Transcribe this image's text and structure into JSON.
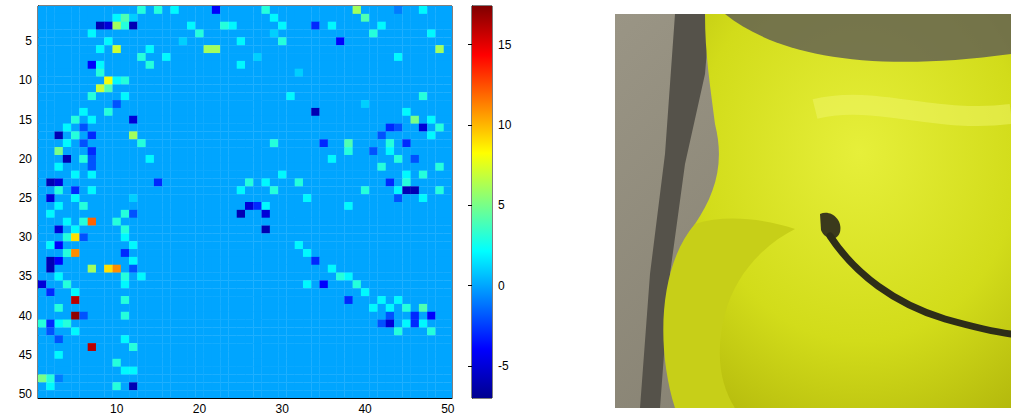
{
  "chart_data": {
    "type": "heatmap",
    "color": "jet",
    "grid": false,
    "xlim": [
      0.5,
      50.5
    ],
    "ylim": [
      50.5,
      0.5
    ],
    "xticks": [
      10,
      20,
      30,
      40,
      50
    ],
    "yticks": [
      5,
      10,
      15,
      20,
      25,
      30,
      35,
      40,
      45,
      50
    ],
    "colorbar": {
      "range": [
        -7,
        17.4
      ],
      "ticks": [
        -5,
        0,
        5,
        10,
        15
      ]
    },
    "background_value": 0,
    "cells": [
      [
        11,
        2,
        4
      ],
      [
        13,
        1,
        3
      ],
      [
        15,
        1,
        3
      ],
      [
        17,
        1,
        2
      ],
      [
        22,
        1,
        -4
      ],
      [
        28,
        1,
        3
      ],
      [
        39,
        1,
        6
      ],
      [
        40,
        2,
        4
      ],
      [
        44,
        1,
        -1
      ],
      [
        47,
        1,
        2
      ],
      [
        10,
        2,
        2
      ],
      [
        12,
        2,
        1
      ],
      [
        24,
        3,
        2
      ],
      [
        29,
        2,
        2
      ],
      [
        8,
        3,
        -6
      ],
      [
        9,
        3,
        -5
      ],
      [
        10,
        3,
        6
      ],
      [
        11,
        3,
        3
      ],
      [
        12,
        3,
        -6
      ],
      [
        19,
        3,
        2
      ],
      [
        23,
        3,
        3
      ],
      [
        30,
        3,
        2
      ],
      [
        34,
        3,
        -3
      ],
      [
        36,
        3,
        2
      ],
      [
        42,
        3,
        2
      ],
      [
        7,
        4,
        2
      ],
      [
        20,
        4,
        3
      ],
      [
        29,
        4,
        1
      ],
      [
        48,
        4,
        2
      ],
      [
        41,
        4,
        3
      ],
      [
        9,
        5,
        2
      ],
      [
        25,
        5,
        2
      ],
      [
        30,
        5,
        3
      ],
      [
        37,
        5,
        -4
      ],
      [
        18,
        5,
        1
      ],
      [
        10,
        6,
        7
      ],
      [
        21,
        6,
        6
      ],
      [
        22,
        6,
        6
      ],
      [
        49,
        6,
        6
      ],
      [
        8,
        6,
        2
      ],
      [
        14,
        6,
        2
      ],
      [
        13,
        7,
        3
      ],
      [
        16,
        7,
        2
      ],
      [
        27,
        7,
        1
      ],
      [
        44,
        7,
        2
      ],
      [
        7,
        8,
        -4
      ],
      [
        8,
        8,
        2
      ],
      [
        14,
        8,
        3
      ],
      [
        25,
        8,
        2
      ],
      [
        8,
        9,
        3
      ],
      [
        32,
        9,
        1
      ],
      [
        9,
        10,
        8
      ],
      [
        10,
        10,
        2
      ],
      [
        11,
        10,
        3
      ],
      [
        8,
        11,
        7
      ],
      [
        9,
        11,
        4
      ],
      [
        7,
        12,
        3
      ],
      [
        11,
        12,
        2
      ],
      [
        31,
        12,
        2
      ],
      [
        47,
        12,
        3
      ],
      [
        10,
        13,
        -2
      ],
      [
        40,
        13,
        1
      ],
      [
        6,
        14,
        2
      ],
      [
        9,
        14,
        3
      ],
      [
        34,
        14,
        -6
      ],
      [
        45,
        14,
        2
      ],
      [
        5,
        15,
        3
      ],
      [
        12,
        15,
        -5
      ],
      [
        7,
        15,
        2
      ],
      [
        48,
        15,
        2
      ],
      [
        46,
        15,
        5
      ],
      [
        4,
        16,
        2
      ],
      [
        6,
        16,
        -2
      ],
      [
        43,
        16,
        -3
      ],
      [
        44,
        16,
        -2
      ],
      [
        47,
        16,
        -5
      ],
      [
        49,
        16,
        3
      ],
      [
        3,
        17,
        -6
      ],
      [
        5,
        17,
        3
      ],
      [
        7,
        17,
        -3
      ],
      [
        12,
        17,
        6
      ],
      [
        42,
        17,
        -2
      ],
      [
        48,
        17,
        2
      ],
      [
        4,
        18,
        2
      ],
      [
        6,
        18,
        -2
      ],
      [
        13,
        18,
        3
      ],
      [
        29,
        18,
        3
      ],
      [
        35,
        18,
        -3
      ],
      [
        38,
        18,
        4
      ],
      [
        43,
        18,
        3
      ],
      [
        45,
        18,
        -3
      ],
      [
        3,
        19,
        5
      ],
      [
        7,
        19,
        -3
      ],
      [
        38,
        19,
        3
      ],
      [
        41,
        19,
        -2
      ],
      [
        43,
        19,
        2
      ],
      [
        4,
        20,
        -6
      ],
      [
        6,
        20,
        3
      ],
      [
        7,
        20,
        -2
      ],
      [
        14,
        20,
        2
      ],
      [
        44,
        20,
        3
      ],
      [
        46,
        20,
        -2
      ],
      [
        36,
        20,
        2
      ],
      [
        3,
        21,
        2
      ],
      [
        7,
        21,
        -2
      ],
      [
        42,
        21,
        3
      ],
      [
        49,
        21,
        3
      ],
      [
        5,
        22,
        2
      ],
      [
        7,
        22,
        2
      ],
      [
        30,
        22,
        2
      ],
      [
        45,
        22,
        2
      ],
      [
        47,
        22,
        3
      ],
      [
        2,
        23,
        -6
      ],
      [
        3,
        23,
        -5
      ],
      [
        15,
        23,
        -3
      ],
      [
        26,
        23,
        3
      ],
      [
        28,
        23,
        2
      ],
      [
        32,
        23,
        3
      ],
      [
        43,
        23,
        -3
      ],
      [
        45,
        23,
        3
      ],
      [
        3,
        24,
        3
      ],
      [
        5,
        24,
        -3
      ],
      [
        7,
        24,
        2
      ],
      [
        25,
        24,
        2
      ],
      [
        29,
        24,
        3
      ],
      [
        40,
        24,
        3
      ],
      [
        44,
        24,
        2
      ],
      [
        45,
        24,
        -6
      ],
      [
        46,
        24,
        -6
      ],
      [
        49,
        24,
        3
      ],
      [
        2,
        25,
        -5
      ],
      [
        5,
        25,
        2
      ],
      [
        44,
        25,
        -2
      ],
      [
        47,
        25,
        2
      ],
      [
        12,
        25,
        1
      ],
      [
        33,
        25,
        2
      ],
      [
        3,
        26,
        2
      ],
      [
        6,
        26,
        3
      ],
      [
        26,
        26,
        -5
      ],
      [
        27,
        26,
        -3
      ],
      [
        28,
        26,
        2
      ],
      [
        38,
        26,
        2
      ],
      [
        2,
        27,
        2
      ],
      [
        11,
        27,
        3
      ],
      [
        12,
        27,
        -2
      ],
      [
        25,
        27,
        -6
      ],
      [
        28,
        27,
        -5
      ],
      [
        4,
        28,
        2
      ],
      [
        7,
        28,
        12
      ],
      [
        10,
        28,
        3
      ],
      [
        6,
        28,
        3
      ],
      [
        3,
        29,
        -5
      ],
      [
        5,
        29,
        2
      ],
      [
        11,
        29,
        3
      ],
      [
        28,
        29,
        -6
      ],
      [
        4,
        30,
        3
      ],
      [
        5,
        30,
        9
      ],
      [
        6,
        30,
        -2
      ],
      [
        11,
        30,
        2
      ],
      [
        2,
        31,
        2
      ],
      [
        3,
        31,
        -4
      ],
      [
        12,
        31,
        2
      ],
      [
        32,
        31,
        2
      ],
      [
        5,
        32,
        11
      ],
      [
        4,
        32,
        3
      ],
      [
        11,
        32,
        -3
      ],
      [
        33,
        32,
        2
      ],
      [
        2,
        33,
        -6
      ],
      [
        3,
        33,
        -4
      ],
      [
        12,
        33,
        2
      ],
      [
        34,
        33,
        -3
      ],
      [
        2,
        34,
        -6
      ],
      [
        7,
        34,
        6
      ],
      [
        9,
        34,
        9
      ],
      [
        10,
        34,
        11
      ],
      [
        12,
        34,
        -2
      ],
      [
        36,
        34,
        2
      ],
      [
        3,
        35,
        2
      ],
      [
        11,
        35,
        3
      ],
      [
        13,
        35,
        2
      ],
      [
        37,
        35,
        3
      ],
      [
        38,
        35,
        2
      ],
      [
        1,
        36,
        -5
      ],
      [
        4,
        36,
        3
      ],
      [
        11,
        36,
        2
      ],
      [
        35,
        36,
        -4
      ],
      [
        39,
        36,
        3
      ],
      [
        33,
        36,
        2
      ],
      [
        2,
        37,
        -3
      ],
      [
        5,
        37,
        2
      ],
      [
        40,
        37,
        2
      ],
      [
        5,
        38,
        16
      ],
      [
        11,
        38,
        3
      ],
      [
        42,
        38,
        2
      ],
      [
        44,
        38,
        2
      ],
      [
        38,
        38,
        -3
      ],
      [
        3,
        39,
        3
      ],
      [
        45,
        39,
        3
      ],
      [
        47,
        39,
        4
      ],
      [
        43,
        39,
        2
      ],
      [
        41,
        39,
        2
      ],
      [
        5,
        40,
        17
      ],
      [
        6,
        40,
        -2
      ],
      [
        11,
        40,
        3
      ],
      [
        43,
        40,
        -2
      ],
      [
        46,
        40,
        -3
      ],
      [
        48,
        40,
        -4
      ],
      [
        1,
        41,
        3
      ],
      [
        2,
        41,
        -3
      ],
      [
        3,
        41,
        2
      ],
      [
        4,
        41,
        3
      ],
      [
        42,
        41,
        -2
      ],
      [
        43,
        41,
        -5
      ],
      [
        45,
        41,
        2
      ],
      [
        46,
        41,
        -3
      ],
      [
        47,
        41,
        2
      ],
      [
        2,
        42,
        -2
      ],
      [
        5,
        42,
        2
      ],
      [
        44,
        42,
        3
      ],
      [
        48,
        42,
        3
      ],
      [
        3,
        43,
        -2
      ],
      [
        11,
        43,
        2
      ],
      [
        7,
        44,
        16
      ],
      [
        12,
        44,
        3
      ],
      [
        3,
        45,
        2
      ],
      [
        10,
        46,
        3
      ],
      [
        11,
        47,
        2
      ],
      [
        12,
        47,
        2
      ],
      [
        1,
        48,
        5
      ],
      [
        2,
        48,
        3
      ],
      [
        3,
        48,
        -1
      ],
      [
        10,
        49,
        3
      ],
      [
        12,
        49,
        -6
      ],
      [
        2,
        49,
        2
      ]
    ]
  }
}
